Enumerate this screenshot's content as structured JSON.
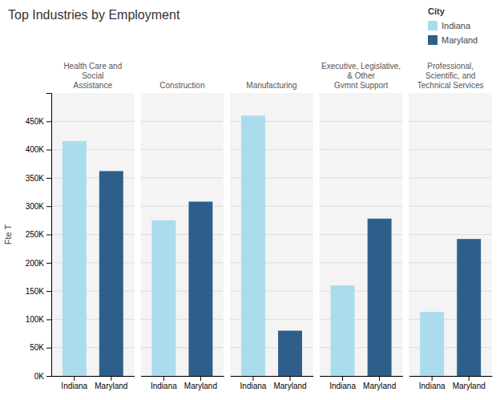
{
  "chart_data": {
    "type": "bar",
    "title": "Top Industries by Employment",
    "ylabel": "Fte T",
    "legend_title": "City",
    "categories": [
      "Health Care and Social\nAssistance",
      "Construction",
      "Manufacturing",
      "Executive, Legislative, & Other\nGvmnt Support",
      "Professional, Scientific, and\nTechnical Services"
    ],
    "series": [
      {
        "name": "Indiana",
        "color": "#aadcee",
        "values": [
          415000,
          275000,
          460000,
          160000,
          113000
        ]
      },
      {
        "name": "Maryland",
        "color": "#2e5f8a",
        "values": [
          362000,
          308000,
          80000,
          278000,
          242000
        ]
      }
    ],
    "ylim": [
      0,
      500000
    ],
    "yticks": [
      {
        "value": 0,
        "label": "0K"
      },
      {
        "value": 50000,
        "label": "50K"
      },
      {
        "value": 100000,
        "label": "100K"
      },
      {
        "value": 150000,
        "label": "150K"
      },
      {
        "value": 200000,
        "label": "200K"
      },
      {
        "value": 250000,
        "label": "250K"
      },
      {
        "value": 300000,
        "label": "300K"
      },
      {
        "value": 350000,
        "label": "350K"
      },
      {
        "value": 400000,
        "label": "400K"
      },
      {
        "value": 450000,
        "label": "450K"
      }
    ],
    "grid": true,
    "legend": "upper right"
  }
}
